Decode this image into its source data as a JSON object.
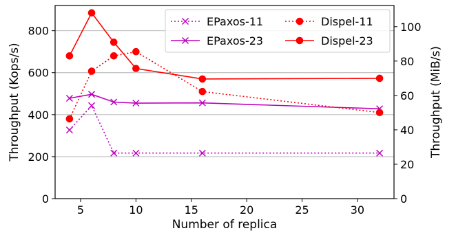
{
  "chart_data": {
    "type": "line",
    "x_label": "Number of replica",
    "y_label_left": "Throughput (Kops/s)",
    "y_label_right": "Throughput (MiB/s)",
    "x_range": [
      2.7,
      33.3
    ],
    "x_ticks": [
      5,
      10,
      15,
      20,
      25,
      30
    ],
    "y_left_range": [
      0,
      920
    ],
    "y_left_ticks": [
      0,
      200,
      400,
      600,
      800
    ],
    "y_right_range": [
      0,
      112.3
    ],
    "y_right_ticks": [
      0,
      20,
      40,
      60,
      80,
      100
    ],
    "grid": "horizontal",
    "legend_position": "top-right",
    "series": [
      {
        "name": "EPaxos-11",
        "color": "#bf00bf",
        "style": "dotted",
        "marker": "x",
        "x": [
          4,
          6,
          8,
          10,
          16,
          32
        ],
        "y": [
          327,
          443,
          217,
          217,
          217,
          217
        ]
      },
      {
        "name": "EPaxos-23",
        "color": "#bf00bf",
        "style": "solid",
        "marker": "x",
        "x": [
          4,
          6,
          8,
          10,
          16,
          32
        ],
        "y": [
          478,
          497,
          460,
          455,
          456,
          428
        ]
      },
      {
        "name": "Dispel-11",
        "color": "#ff0000",
        "style": "dotted",
        "marker": "circle",
        "x": [
          4,
          6,
          8,
          10,
          16,
          32
        ],
        "y": [
          380,
          607,
          680,
          700,
          510,
          410
        ]
      },
      {
        "name": "Dispel-23",
        "color": "#ff0000",
        "style": "solid",
        "marker": "circle",
        "x": [
          4,
          6,
          8,
          10,
          16,
          32
        ],
        "y": [
          680,
          885,
          745,
          620,
          570,
          573
        ]
      }
    ]
  }
}
